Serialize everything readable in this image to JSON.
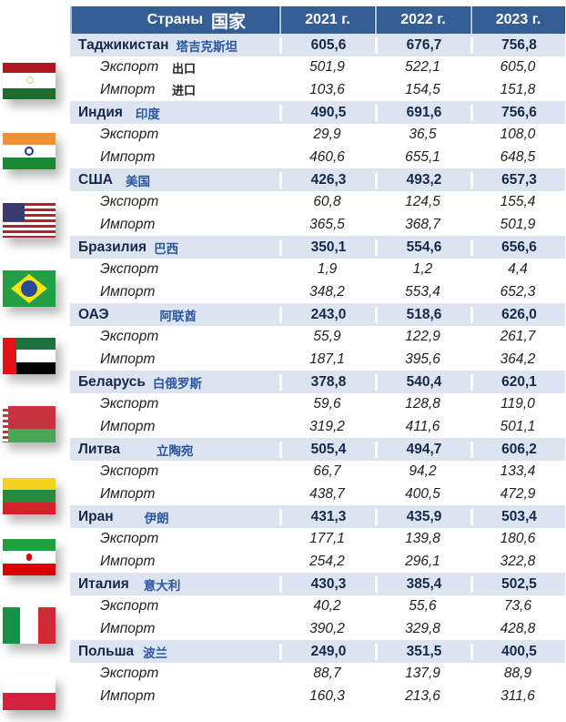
{
  "header": {
    "country_label_ru": "Страны",
    "country_label_zh": "国家",
    "years": [
      "2021 г.",
      "2022 г.",
      "2023 г."
    ]
  },
  "row_labels": {
    "export_ru": "Экспорт",
    "import_ru": "Импорт",
    "export_zh": "出口",
    "import_zh": "进口"
  },
  "countries": [
    {
      "name_ru": "Таджикистан",
      "name_zh": "塔吉克斯坦",
      "flag": "tajikistan-flag",
      "total": [
        "605,6",
        "676,7",
        "756,8"
      ],
      "export": [
        "501,9",
        "522,1",
        "605,0"
      ],
      "import": [
        "103,6",
        "154,5",
        "151,8"
      ],
      "show_zh_sublabels": true
    },
    {
      "name_ru": "Индия",
      "name_zh": "印度",
      "flag": "india-flag",
      "total": [
        "490,5",
        "691,6",
        "756,6"
      ],
      "export": [
        "29,9",
        "36,5",
        "108,0"
      ],
      "import": [
        "460,6",
        "655,1",
        "648,5"
      ]
    },
    {
      "name_ru": "США",
      "name_zh": "美国",
      "flag": "usa-flag",
      "total": [
        "426,3",
        "493,2",
        "657,3"
      ],
      "export": [
        "60,8",
        "124,5",
        "155,4"
      ],
      "import": [
        "365,5",
        "368,7",
        "501,9"
      ]
    },
    {
      "name_ru": "Бразилия",
      "name_zh": "巴西",
      "flag": "brazil-flag",
      "total": [
        "350,1",
        "554,6",
        "656,6"
      ],
      "export": [
        "1,9",
        "1,2",
        "4,4"
      ],
      "import": [
        "348,2",
        "553,4",
        "652,3"
      ]
    },
    {
      "name_ru": "ОАЭ",
      "name_zh": "阿联酋",
      "flag": "uae-flag",
      "total": [
        "243,0",
        "518,6",
        "626,0"
      ],
      "export": [
        "55,9",
        "122,9",
        "261,7"
      ],
      "import": [
        "187,1",
        "395,6",
        "364,2"
      ]
    },
    {
      "name_ru": "Беларусь",
      "name_zh": "白俄罗斯",
      "flag": "belarus-flag",
      "total": [
        "378,8",
        "540,4",
        "620,1"
      ],
      "export": [
        "59,6",
        "128,8",
        "119,0"
      ],
      "import": [
        "319,2",
        "411,6",
        "501,1"
      ]
    },
    {
      "name_ru": "Литва",
      "name_zh": "立陶宛",
      "flag": "lithuania-flag",
      "total": [
        "505,4",
        "494,7",
        "606,2"
      ],
      "export": [
        "66,7",
        "94,2",
        "133,4"
      ],
      "import": [
        "438,7",
        "400,5",
        "472,9"
      ]
    },
    {
      "name_ru": "Иран",
      "name_zh": "伊朗",
      "flag": "iran-flag",
      "total": [
        "431,3",
        "435,9",
        "503,4"
      ],
      "export": [
        "177,1",
        "139,8",
        "180,6"
      ],
      "import": [
        "254,2",
        "296,1",
        "322,8"
      ]
    },
    {
      "name_ru": "Италия",
      "name_zh": "意大利",
      "flag": "italy-flag",
      "total": [
        "430,3",
        "385,4",
        "502,5"
      ],
      "export": [
        "40,2",
        "55,6",
        "73,6"
      ],
      "import": [
        "390,2",
        "329,8",
        "428,8"
      ]
    },
    {
      "name_ru": "Польша",
      "name_zh": "波兰",
      "flag": "poland-flag",
      "total": [
        "249,0",
        "351,5",
        "400,5"
      ],
      "export": [
        "88,7",
        "137,9",
        "88,9"
      ],
      "import": [
        "160,3",
        "213,6",
        "311,6"
      ]
    }
  ],
  "colors": {
    "header_bg": "#355e95",
    "header_text": "#ffffff",
    "country_row_bg": "#dbe4ef",
    "country_text": "#17294a",
    "chinese_text": "#2c56a0"
  }
}
